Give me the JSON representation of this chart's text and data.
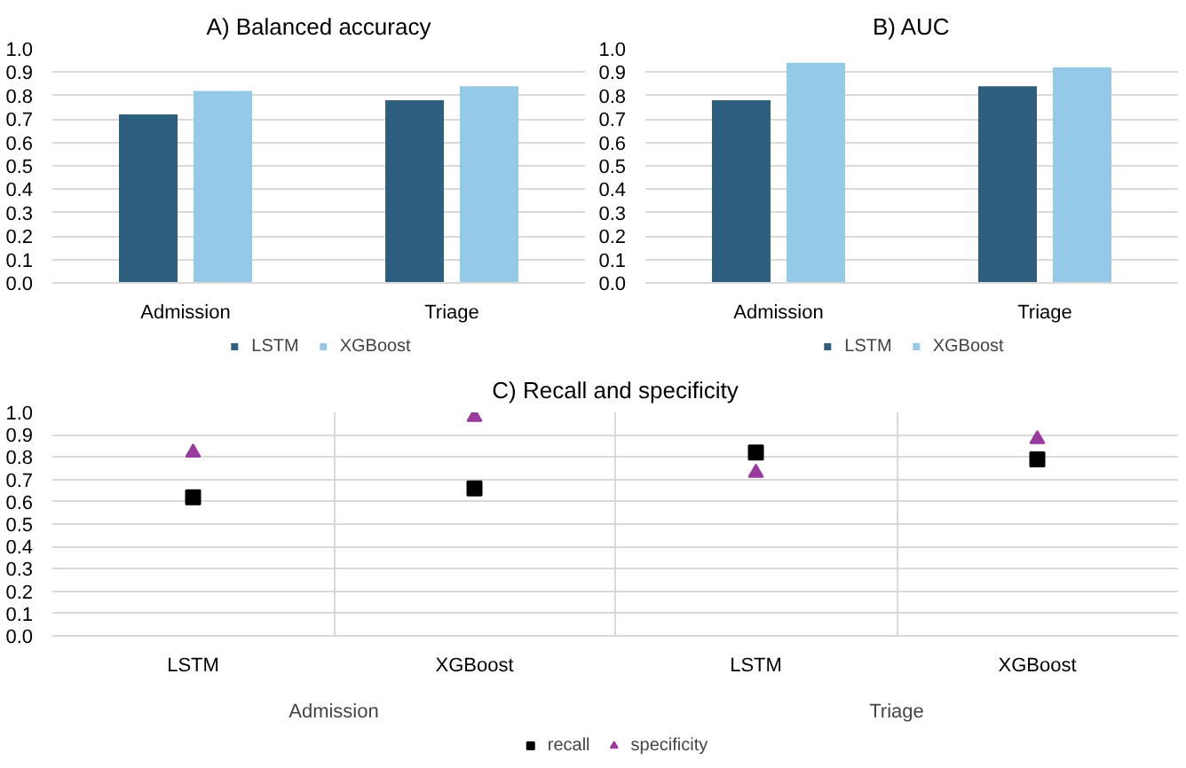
{
  "chart_data": [
    {
      "type": "bar",
      "title": "A) Balanced accuracy",
      "categories": [
        "Admission",
        "Triage"
      ],
      "series": [
        {
          "name": "LSTM",
          "color": "#2e5f7f",
          "values": [
            0.72,
            0.78
          ]
        },
        {
          "name": "XGBoost",
          "color": "#94c9e8",
          "values": [
            0.82,
            0.84
          ]
        }
      ],
      "ylim": [
        0,
        1.0
      ],
      "yticks": [
        {
          "value": 0,
          "label": "0.0"
        },
        {
          "value": 0.1,
          "label": "0.1"
        },
        {
          "value": 0.2,
          "label": "0.2"
        },
        {
          "value": 0.3,
          "label": "0.3"
        },
        {
          "value": 0.4,
          "label": "0.4"
        },
        {
          "value": 0.5,
          "label": "0.5"
        },
        {
          "value": 0.6,
          "label": "0.6"
        },
        {
          "value": 0.7,
          "label": "0.7"
        },
        {
          "value": 0.8,
          "label": "0.8"
        },
        {
          "value": 0.9,
          "label": "0.9"
        },
        {
          "value": 1.0,
          "label": "1.0"
        }
      ],
      "grid": "y",
      "legend": "bottom"
    },
    {
      "type": "bar",
      "title": "B) AUC",
      "categories": [
        "Admission",
        "Triage"
      ],
      "series": [
        {
          "name": "LSTM",
          "color": "#2e5f7f",
          "values": [
            0.78,
            0.84
          ]
        },
        {
          "name": "XGBoost",
          "color": "#94c9e8",
          "values": [
            0.94,
            0.92
          ]
        }
      ],
      "ylim": [
        0,
        1.0
      ],
      "yticks": [
        {
          "value": 0,
          "label": "0.0"
        },
        {
          "value": 0.1,
          "label": "0.1"
        },
        {
          "value": 0.2,
          "label": "0.2"
        },
        {
          "value": 0.3,
          "label": "0.3"
        },
        {
          "value": 0.4,
          "label": "0.4"
        },
        {
          "value": 0.5,
          "label": "0.5"
        },
        {
          "value": 0.6,
          "label": "0.6"
        },
        {
          "value": 0.7,
          "label": "0.7"
        },
        {
          "value": 0.8,
          "label": "0.8"
        },
        {
          "value": 0.9,
          "label": "0.9"
        },
        {
          "value": 1.0,
          "label": "1.0"
        }
      ],
      "grid": "y",
      "legend": "bottom"
    },
    {
      "type": "scatter",
      "title": "C) Recall and specificity",
      "categories": [
        "LSTM",
        "XGBoost",
        "LSTM",
        "XGBoost"
      ],
      "annotations": [
        "Admission",
        "Triage"
      ],
      "series": [
        {
          "name": "recall",
          "color": "#000000",
          "marker": "square",
          "values": [
            0.62,
            0.66,
            0.82,
            0.79
          ]
        },
        {
          "name": "specificity",
          "color": "#9b3a9e",
          "marker": "triangle",
          "values": [
            0.82,
            0.98,
            0.73,
            0.88
          ]
        }
      ],
      "ylim": [
        0,
        1.0
      ],
      "yticks": [
        {
          "value": 0,
          "label": "0.0"
        },
        {
          "value": 0.1,
          "label": "0.1"
        },
        {
          "value": 0.2,
          "label": "0.2"
        },
        {
          "value": 0.3,
          "label": "0.3"
        },
        {
          "value": 0.4,
          "label": "0.4"
        },
        {
          "value": 0.5,
          "label": "0.5"
        },
        {
          "value": 0.6,
          "label": "0.6"
        },
        {
          "value": 0.7,
          "label": "0.7"
        },
        {
          "value": 0.8,
          "label": "0.8"
        },
        {
          "value": 0.9,
          "label": "0.9"
        },
        {
          "value": 1.0,
          "label": "1.0"
        }
      ],
      "grid": true,
      "legend": "bottom"
    }
  ]
}
